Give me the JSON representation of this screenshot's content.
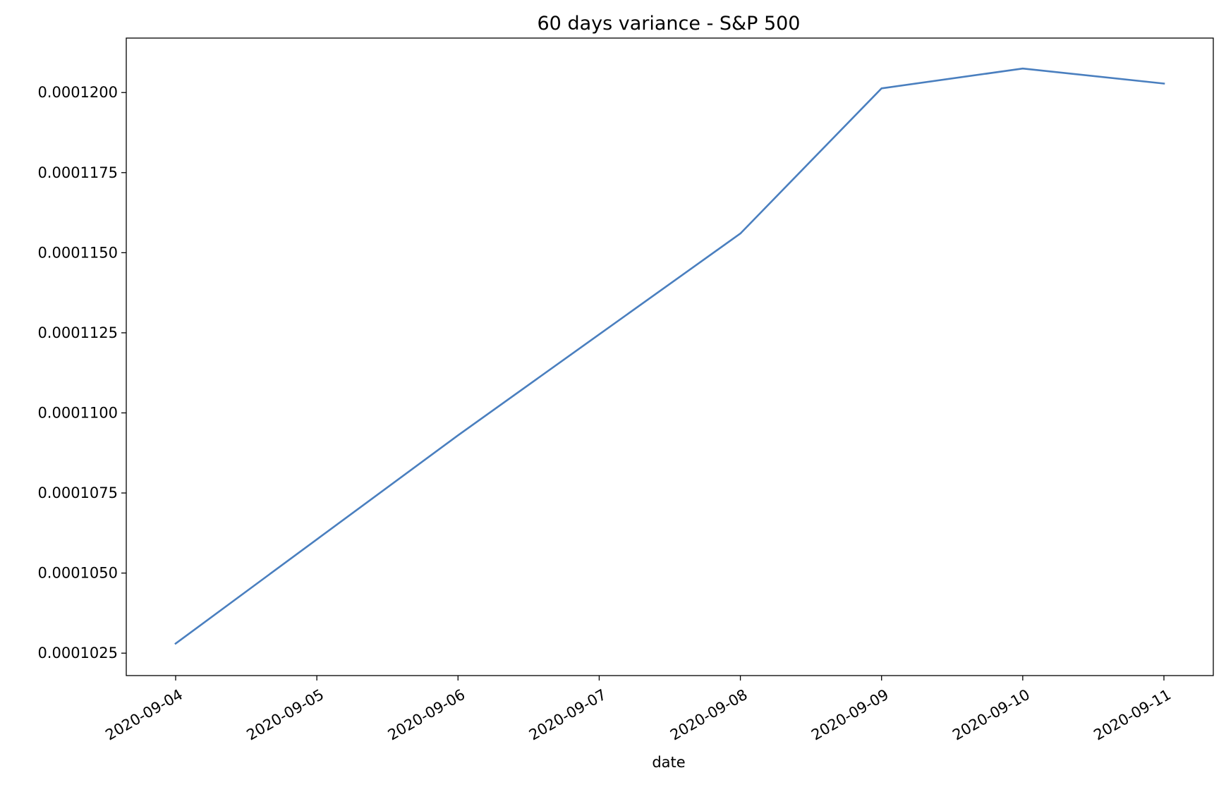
{
  "chart_data": {
    "type": "line",
    "title": "60 days variance - S&P 500",
    "xlabel": "date",
    "ylabel": "",
    "x": [
      "2020-09-04",
      "2020-09-05",
      "2020-09-06",
      "2020-09-07",
      "2020-09-08",
      "2020-09-09",
      "2020-09-10",
      "2020-09-11"
    ],
    "xtick_labels": [
      "2020-09-04",
      "2020-09-05",
      "2020-09-06",
      "2020-09-07",
      "2020-09-08",
      "2020-09-09",
      "2020-09-10",
      "2020-09-11"
    ],
    "series": [
      {
        "values": [
          0.0001028,
          0.00010605,
          0.0001093,
          0.00011245,
          0.0001156,
          0.00012013,
          0.00012075,
          0.00012028
        ],
        "color": "#4a7fbf"
      }
    ],
    "ylim": [
      0.0001018,
      0.0001217
    ],
    "yticks": [
      0.0001025,
      0.000105,
      0.0001075,
      0.00011,
      0.0001125,
      0.000115,
      0.0001175,
      0.00012
    ],
    "ytick_labels": [
      "0.0001025",
      "0.0001050",
      "0.0001075",
      "0.0001100",
      "0.0001125",
      "0.0001150",
      "0.0001175",
      "0.0001200"
    ],
    "grid": false,
    "legend": "none"
  }
}
